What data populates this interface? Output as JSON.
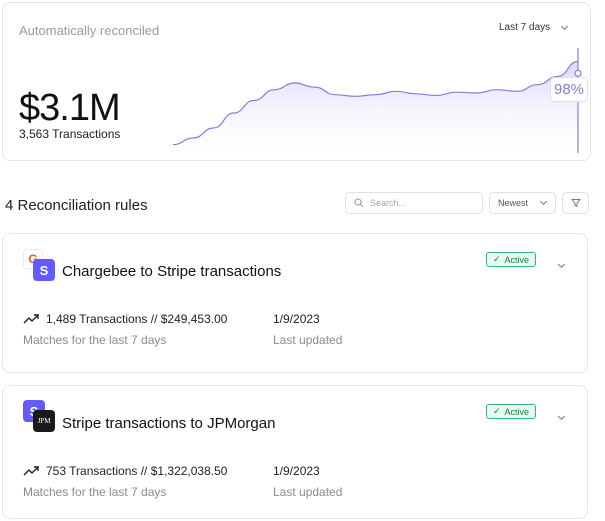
{
  "summary": {
    "title": "Automatically reconciled",
    "range_label": "Last 7 days",
    "amount": "$3.1M",
    "transactions": "3,563 Transactions",
    "percent": "98%"
  },
  "chart_data": {
    "type": "area",
    "title": "",
    "xlabel": "",
    "ylabel": "",
    "x": [
      0,
      1,
      2,
      3,
      4,
      5,
      6,
      7,
      8,
      9,
      10,
      11,
      12,
      13,
      14,
      15,
      16,
      17,
      18,
      19,
      20
    ],
    "values": [
      10,
      18,
      30,
      48,
      63,
      76,
      84,
      79,
      70,
      68,
      70,
      74,
      71,
      69,
      73,
      72,
      76,
      74,
      82,
      92,
      110
    ],
    "ylim": [
      0,
      120
    ],
    "color": "#8b7bd8",
    "fill": "#efeafb"
  },
  "rules": {
    "title": "4 Reconciliation rules",
    "search_placeholder": "Search...",
    "sort_label": "Newest",
    "items": [
      {
        "name": "Chargebee to Stripe transactions",
        "status": "Active",
        "back_logo_letter": "G",
        "front_logo_letter": "S",
        "stat": "1,489 Transactions // $249,453.00",
        "stat_sub": "Matches for the last 7 days",
        "date": "1/9/2023",
        "date_sub": "Last updated"
      },
      {
        "name": "Stripe transactions to JPMorgan",
        "status": "Active",
        "back_logo_letter": "S",
        "front_logo_letter": "JPM",
        "stat": "753 Transactions // $1,322,038.50",
        "stat_sub": "Matches for the last 7 days",
        "date": "1/9/2023",
        "date_sub": "Last updated"
      }
    ]
  },
  "colors": {
    "accent": "#8b7bd8",
    "stripe": "#635bff",
    "chargebee": "#f05a28",
    "active_border": "#36b37e",
    "jpm": "#1a1a1a"
  }
}
